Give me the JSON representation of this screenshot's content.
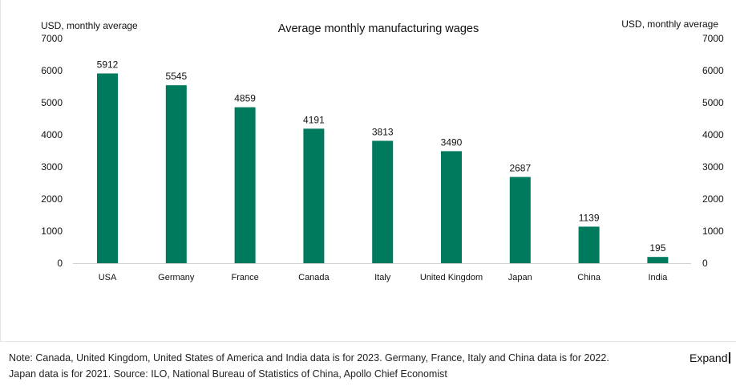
{
  "chart_data": {
    "type": "bar",
    "title": "Average monthly manufacturing wages",
    "ylabel_left": "USD, monthly average",
    "ylabel_right": "USD, monthly average",
    "categories": [
      "USA",
      "Germany",
      "France",
      "Canada",
      "Italy",
      "United Kingdom",
      "Japan",
      "China",
      "India"
    ],
    "values": [
      5912,
      5545,
      4859,
      4191,
      3813,
      3490,
      2687,
      1139,
      195
    ],
    "ylim": [
      0,
      7000
    ],
    "yticks": [
      0,
      1000,
      2000,
      3000,
      4000,
      5000,
      6000,
      7000
    ],
    "data_labels": true,
    "grid": false,
    "bar_color": "#007a5c"
  },
  "footnote": {
    "line1": "Note: Canada, United Kingdom, United States of America and India data is for 2023. Germany, France, Italy and China data is for 2022.",
    "line2": "Japan data is for 2021. Source: ILO, National Bureau of Statistics of China, Apollo Chief Economist"
  },
  "expand_label": "Expand"
}
